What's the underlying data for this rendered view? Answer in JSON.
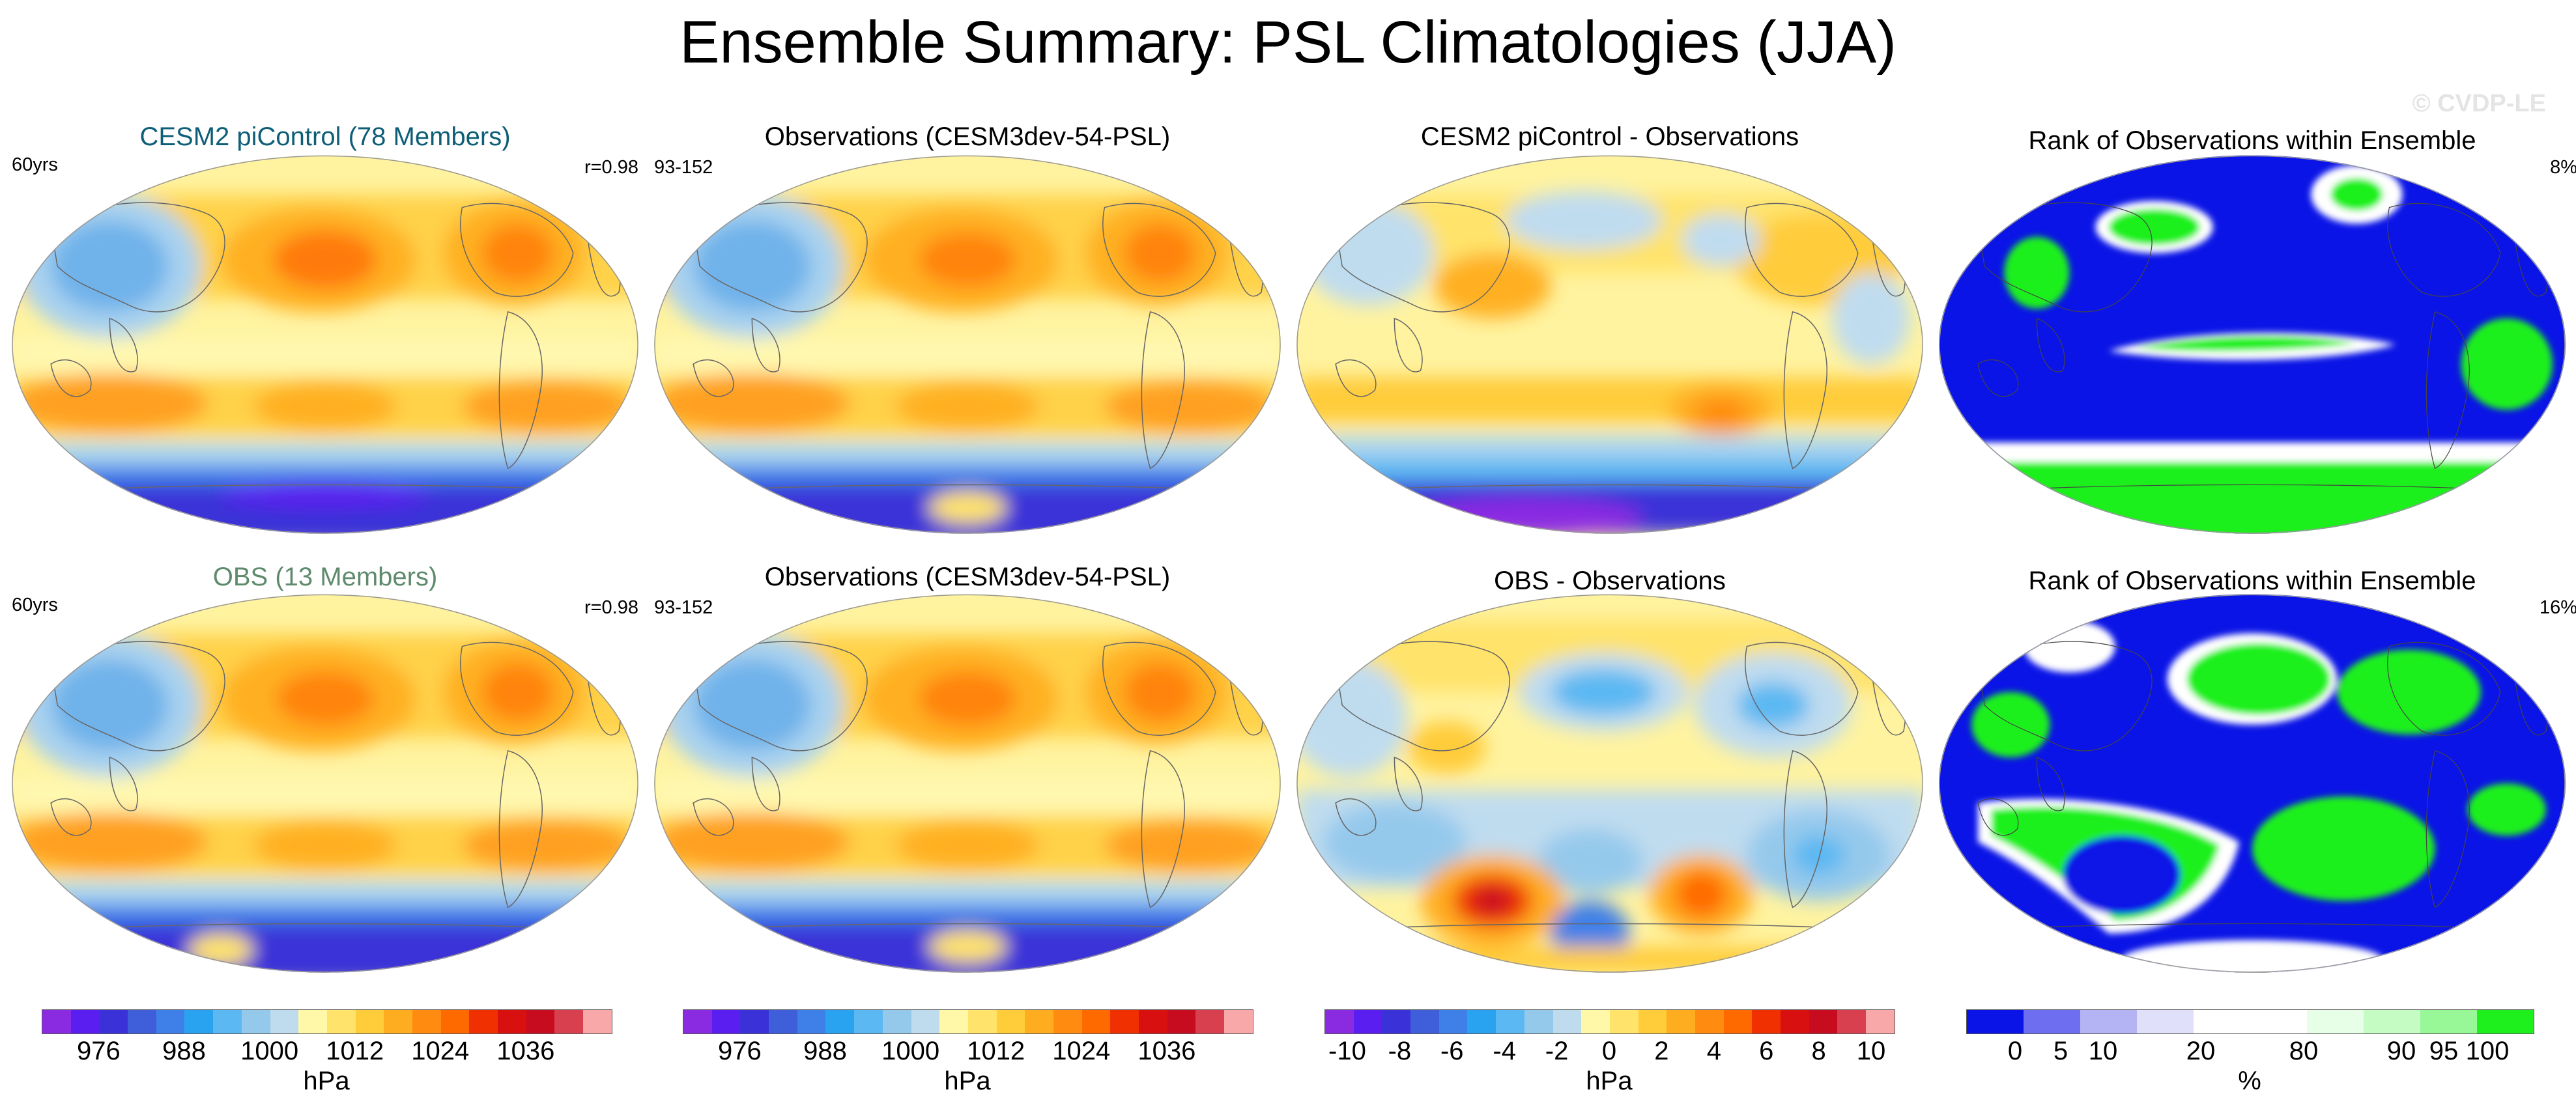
{
  "title": "Ensemble Summary: PSL Climatologies (JJA)",
  "watermark": "© CVDP-LE",
  "panels": {
    "p1": {
      "title": "CESM2 piControl (78 Members)",
      "left": "60yrs",
      "right": "r=0.98"
    },
    "p2": {
      "title": "Observations (CESM3dev-54-PSL)",
      "left": "93-152",
      "right": ""
    },
    "p3": {
      "title": "CESM2 piControl - Observations",
      "left": "",
      "right": ""
    },
    "p4": {
      "title": "Rank of Observations within Ensemble",
      "left": "",
      "right": "8%"
    },
    "p5": {
      "title": "OBS (13 Members)",
      "left": "60yrs",
      "right": "r=0.98"
    },
    "p6": {
      "title": "Observations (CESM3dev-54-PSL)",
      "left": "93-152",
      "right": ""
    },
    "p7": {
      "title": "OBS - Observations",
      "left": "",
      "right": ""
    },
    "p8": {
      "title": "Rank of Observations within Ensemble",
      "left": "",
      "right": "16%"
    }
  },
  "colorbars": {
    "psl": {
      "unit": "hPa",
      "labels": [
        "976",
        "988",
        "1000",
        "1012",
        "1024",
        "1036"
      ],
      "colors": [
        "#8a2be2",
        "#5b1ef0",
        "#3a32d8",
        "#3e5fd9",
        "#3f80e8",
        "#29a3f0",
        "#5cb8f2",
        "#95c9ec",
        "#bfdcef",
        "#fff8a8",
        "#ffe36a",
        "#ffcc3a",
        "#ffad20",
        "#ff8c10",
        "#ff6a00",
        "#f03000",
        "#d81010",
        "#c80c20",
        "#d84050",
        "#f8a8a8"
      ]
    },
    "diff": {
      "unit": "hPa",
      "labels": [
        "-10",
        "-8",
        "-6",
        "-4",
        "-2",
        "0",
        "2",
        "4",
        "6",
        "8",
        "10"
      ],
      "colors": [
        "#8a2be2",
        "#5b1ef0",
        "#3a32d8",
        "#3e5fd9",
        "#3f80e8",
        "#29a3f0",
        "#5cb8f2",
        "#95c9ec",
        "#bfdcef",
        "#fff8a8",
        "#ffe36a",
        "#ffcc3a",
        "#ffad20",
        "#ff8c10",
        "#ff6a00",
        "#f03000",
        "#d81010",
        "#c80c20",
        "#d84050",
        "#f8a8a8"
      ]
    },
    "rank": {
      "unit": "%",
      "labels": [
        "0",
        "5",
        "10",
        "20",
        "80",
        "90",
        "95",
        "100"
      ],
      "colors": [
        "#0a14e6",
        "#6e6ef0",
        "#b4b4f4",
        "#e0e0fa",
        "#ffffff",
        "#ffffff",
        "#e6ffe6",
        "#c4fcc4",
        "#98f898",
        "#1ef01e"
      ]
    }
  },
  "colors": {
    "land_outline": "#666666",
    "psl_high": "#ff8c10",
    "psl_low": "#3a32d8",
    "rank_low": "#0a14e6",
    "rank_high": "#1ef01e"
  }
}
